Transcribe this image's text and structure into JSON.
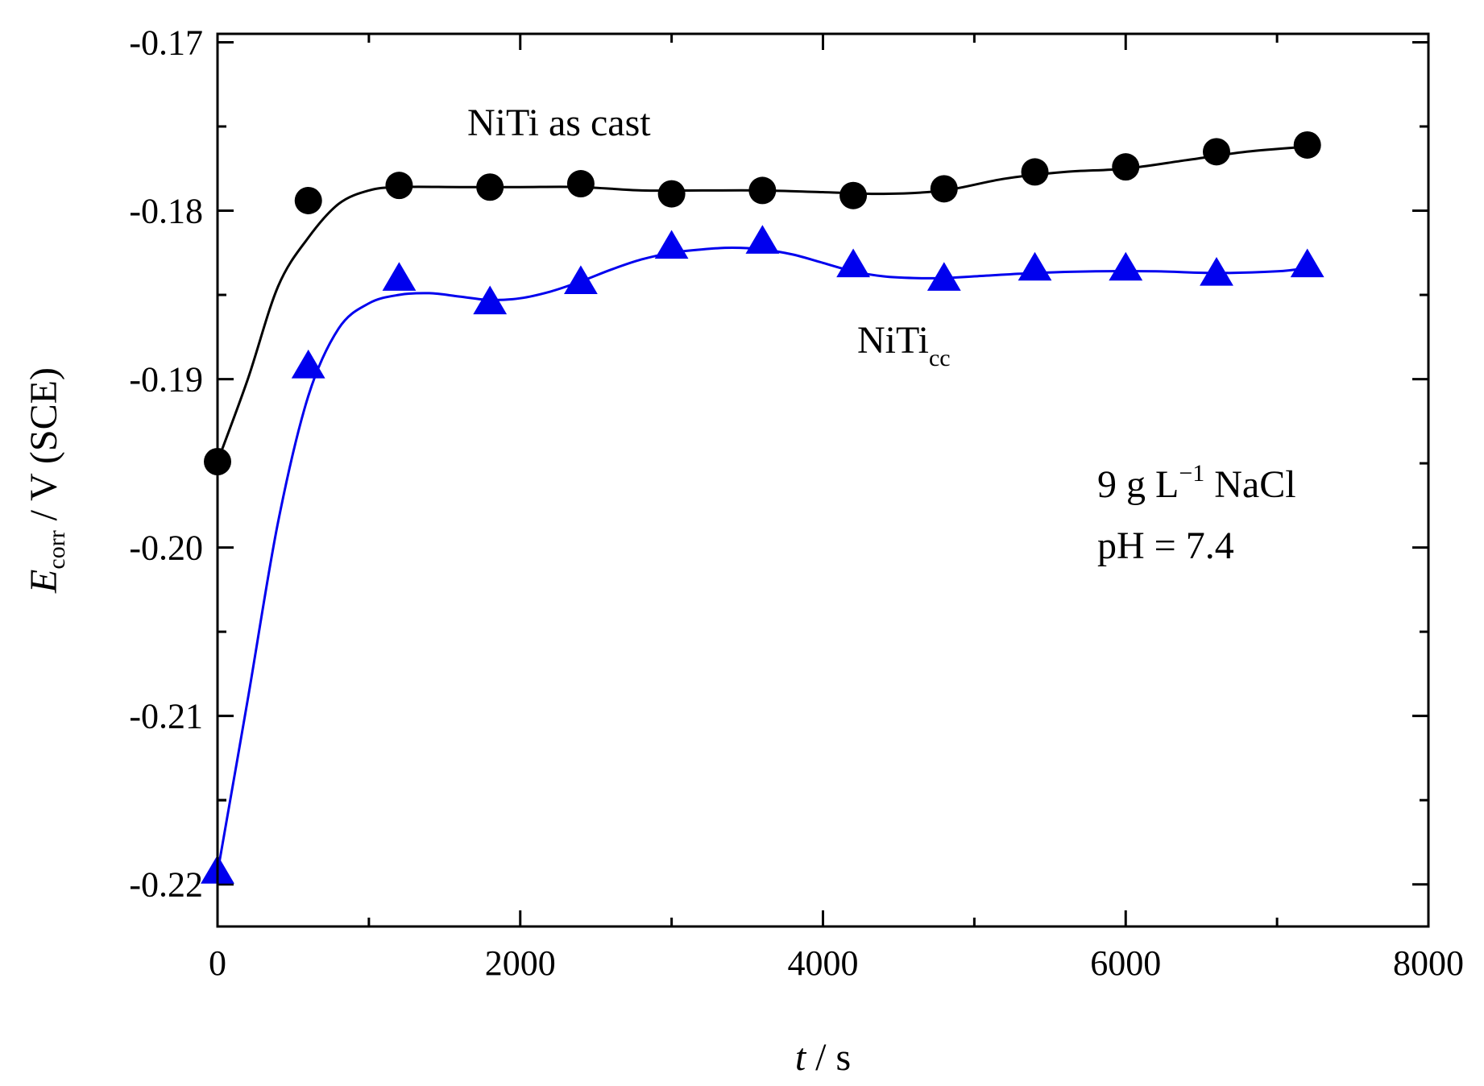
{
  "chart_data": {
    "type": "line",
    "x_axis": {
      "var": "t",
      "unit": "s",
      "sep": " / ",
      "range": [
        0,
        8000
      ],
      "ticks": [
        0,
        2000,
        4000,
        6000,
        8000
      ],
      "tick_labels": [
        "0",
        "2000",
        "4000",
        "6000",
        "8000"
      ]
    },
    "y_axis": {
      "var": "E",
      "sub": "corr",
      "unit": "V (SCE)",
      "sep": " / ",
      "range": [
        -0.2225,
        -0.1695
      ],
      "ticks": [
        -0.17,
        -0.18,
        -0.19,
        -0.2,
        -0.21,
        -0.22
      ],
      "tick_labels": [
        "-0.17",
        "-0.18",
        "-0.19",
        "-0.20",
        "-0.21",
        "-0.22"
      ]
    },
    "series": [
      {
        "name": "NiTi as cast",
        "label": "NiTi as cast",
        "color": "#000000",
        "marker": "circle",
        "x": [
          0,
          600,
          1200,
          1800,
          2400,
          3000,
          3600,
          4200,
          4800,
          5400,
          6000,
          6600,
          7200
        ],
        "y": [
          -0.1949,
          -0.1794,
          -0.1785,
          -0.1786,
          -0.1784,
          -0.179,
          -0.1788,
          -0.1791,
          -0.1787,
          -0.1777,
          -0.1774,
          -0.1765,
          -0.1761
        ],
        "fit_x": [
          0,
          200,
          400,
          600,
          800,
          1000,
          1200,
          1600,
          2000,
          2400,
          2800,
          3200,
          3600,
          4000,
          4400,
          4800,
          5200,
          5600,
          6000,
          6400,
          6800,
          7200
        ],
        "fit_y": [
          -0.1949,
          -0.19,
          -0.1845,
          -0.1816,
          -0.1796,
          -0.1788,
          -0.1786,
          -0.1786,
          -0.1786,
          -0.1786,
          -0.1788,
          -0.1788,
          -0.1788,
          -0.1789,
          -0.179,
          -0.1788,
          -0.1781,
          -0.1777,
          -0.1775,
          -0.177,
          -0.1765,
          -0.1762
        ]
      },
      {
        "name": "NiTi_cc",
        "label_main": "NiTi",
        "label_sub": "cc",
        "color": "#0000EE",
        "marker": "triangle",
        "x": [
          0,
          600,
          1200,
          1800,
          2400,
          3000,
          3600,
          4200,
          4800,
          5400,
          6000,
          6600,
          7200
        ],
        "y": [
          -0.2193,
          -0.1893,
          -0.1841,
          -0.1855,
          -0.1843,
          -0.1822,
          -0.1819,
          -0.1833,
          -0.1841,
          -0.1835,
          -0.1835,
          -0.1838,
          -0.1833
        ],
        "fit_x": [
          0,
          200,
          400,
          600,
          800,
          1000,
          1200,
          1400,
          1600,
          1800,
          2000,
          2200,
          2400,
          2600,
          2800,
          3000,
          3200,
          3400,
          3600,
          3800,
          4000,
          4200,
          4400,
          4600,
          4800,
          5000,
          5400,
          5800,
          6200,
          6600,
          7000,
          7200
        ],
        "fit_y": [
          -0.2193,
          -0.209,
          -0.1985,
          -0.191,
          -0.187,
          -0.1855,
          -0.185,
          -0.1849,
          -0.1851,
          -0.1853,
          -0.1852,
          -0.1848,
          -0.1842,
          -0.1835,
          -0.1829,
          -0.1825,
          -0.1823,
          -0.1822,
          -0.1823,
          -0.1826,
          -0.1831,
          -0.1836,
          -0.1839,
          -0.184,
          -0.184,
          -0.1839,
          -0.1837,
          -0.1836,
          -0.1836,
          -0.1837,
          -0.1836,
          -0.1834
        ]
      }
    ],
    "annotations": {
      "condition_line1_prefix": "9 g L",
      "condition_line1_sup": "−1",
      "condition_line1_suffix": " NaCl",
      "condition_line2": "pH = 7.4"
    }
  }
}
